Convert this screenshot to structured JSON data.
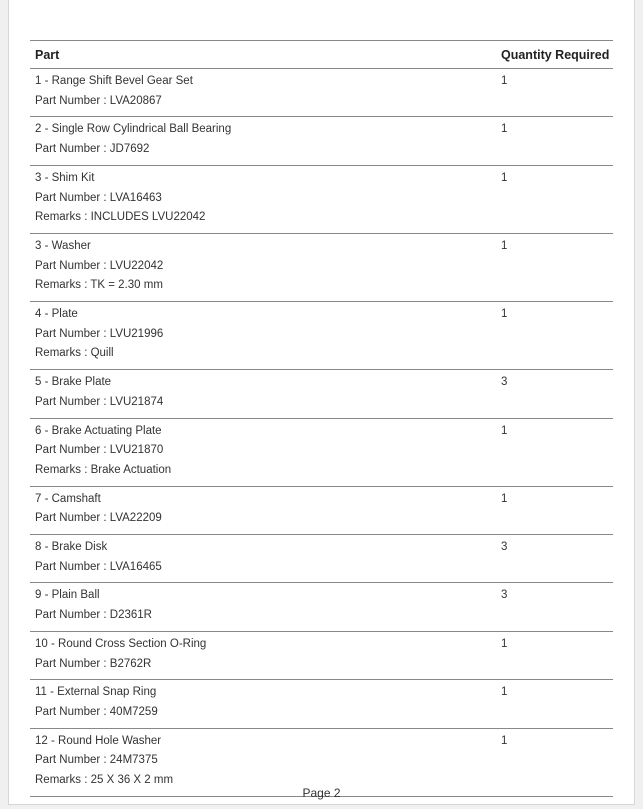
{
  "table": {
    "headers": {
      "part": "Part",
      "quantity": "Quantity Required"
    },
    "rows": [
      {
        "name": "1 - Range Shift Bevel Gear Set",
        "part_number": "Part Number : LVA20867",
        "remarks": null,
        "quantity": "1"
      },
      {
        "name": "2 - Single Row Cylindrical Ball Bearing",
        "part_number": "Part Number : JD7692",
        "remarks": null,
        "quantity": "1"
      },
      {
        "name": "3 - Shim Kit",
        "part_number": "Part Number : LVA16463",
        "remarks": "Remarks : INCLUDES LVU22042",
        "quantity": "1"
      },
      {
        "name": "3 - Washer",
        "part_number": "Part Number : LVU22042",
        "remarks": "Remarks : TK = 2.30 mm",
        "quantity": "1"
      },
      {
        "name": "4 - Plate",
        "part_number": "Part Number : LVU21996",
        "remarks": "Remarks : Quill",
        "quantity": "1"
      },
      {
        "name": "5 - Brake Plate",
        "part_number": "Part Number : LVU21874",
        "remarks": null,
        "quantity": "3"
      },
      {
        "name": "6 - Brake Actuating Plate",
        "part_number": "Part Number : LVU21870",
        "remarks": "Remarks : Brake Actuation",
        "quantity": "1"
      },
      {
        "name": "7 - Camshaft",
        "part_number": "Part Number : LVA22209",
        "remarks": null,
        "quantity": "1"
      },
      {
        "name": "8 - Brake Disk",
        "part_number": "Part Number : LVA16465",
        "remarks": null,
        "quantity": "3"
      },
      {
        "name": "9 - Plain Ball",
        "part_number": "Part Number : D2361R",
        "remarks": null,
        "quantity": "3"
      },
      {
        "name": "10 - Round Cross Section O-Ring",
        "part_number": "Part Number : B2762R",
        "remarks": null,
        "quantity": "1"
      },
      {
        "name": "11 - External Snap Ring",
        "part_number": "Part Number : 40M7259",
        "remarks": null,
        "quantity": "1"
      },
      {
        "name": "12 - Round Hole Washer",
        "part_number": "Part Number : 24M7375",
        "remarks": "Remarks : 25 X 36 X 2 mm",
        "quantity": "1"
      }
    ]
  },
  "footer": {
    "page_label": "Page 2"
  }
}
